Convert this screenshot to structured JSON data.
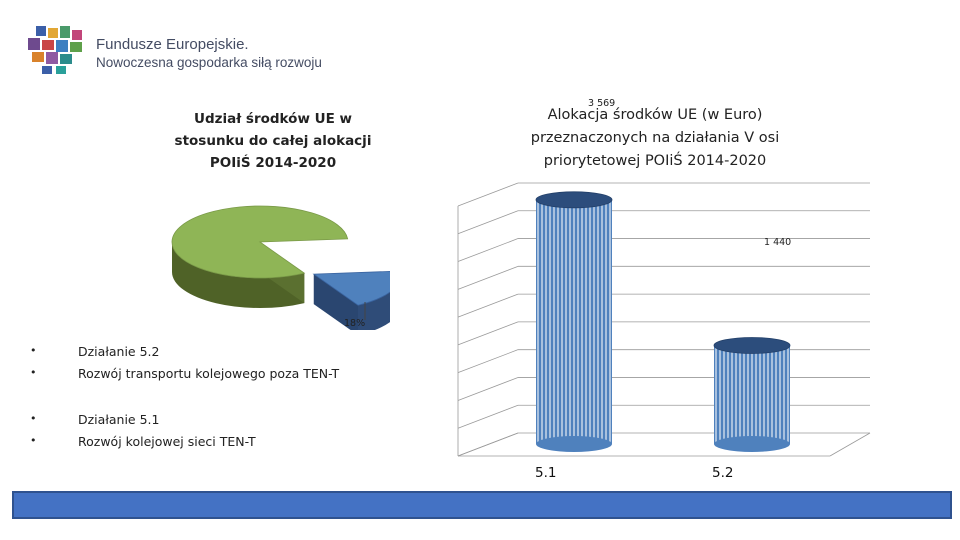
{
  "logo": {
    "line1": "Fundusze Europejskie.",
    "line2": "Nowoczesna gospodarka siłą rozwoju"
  },
  "colors": {
    "pie_main": "#8fb556",
    "pie_slice": "#4f81bd",
    "bars": "#4f81bd",
    "footer": "#4472c4"
  },
  "legend": {
    "item1_label": "Działanie 5.2",
    "item1_desc": "Rozwój transportu kolejowego poza TEN-T",
    "item2_label": "Działanie 5.1",
    "item2_desc": "Rozwój kolejowej sieci TEN-T",
    "bullet": "•"
  },
  "chart_data": [
    {
      "type": "pie",
      "title": "Udział środków UE w stosunku do całej alokacji POIiŚ 2014-2020",
      "slices": [
        {
          "value": 82
        },
        {
          "value": 18,
          "label": "18%"
        }
      ]
    },
    {
      "type": "bar",
      "title": "Alokacja środków UE (w Euro) przeznaczonych na działania V osi priorytetowej POIiŚ 2014-2020",
      "categories": [
        "5.1",
        "5.2"
      ],
      "values": [
        3569,
        1440
      ],
      "data_labels": [
        "3 569",
        "1 440"
      ],
      "grid": true
    }
  ]
}
